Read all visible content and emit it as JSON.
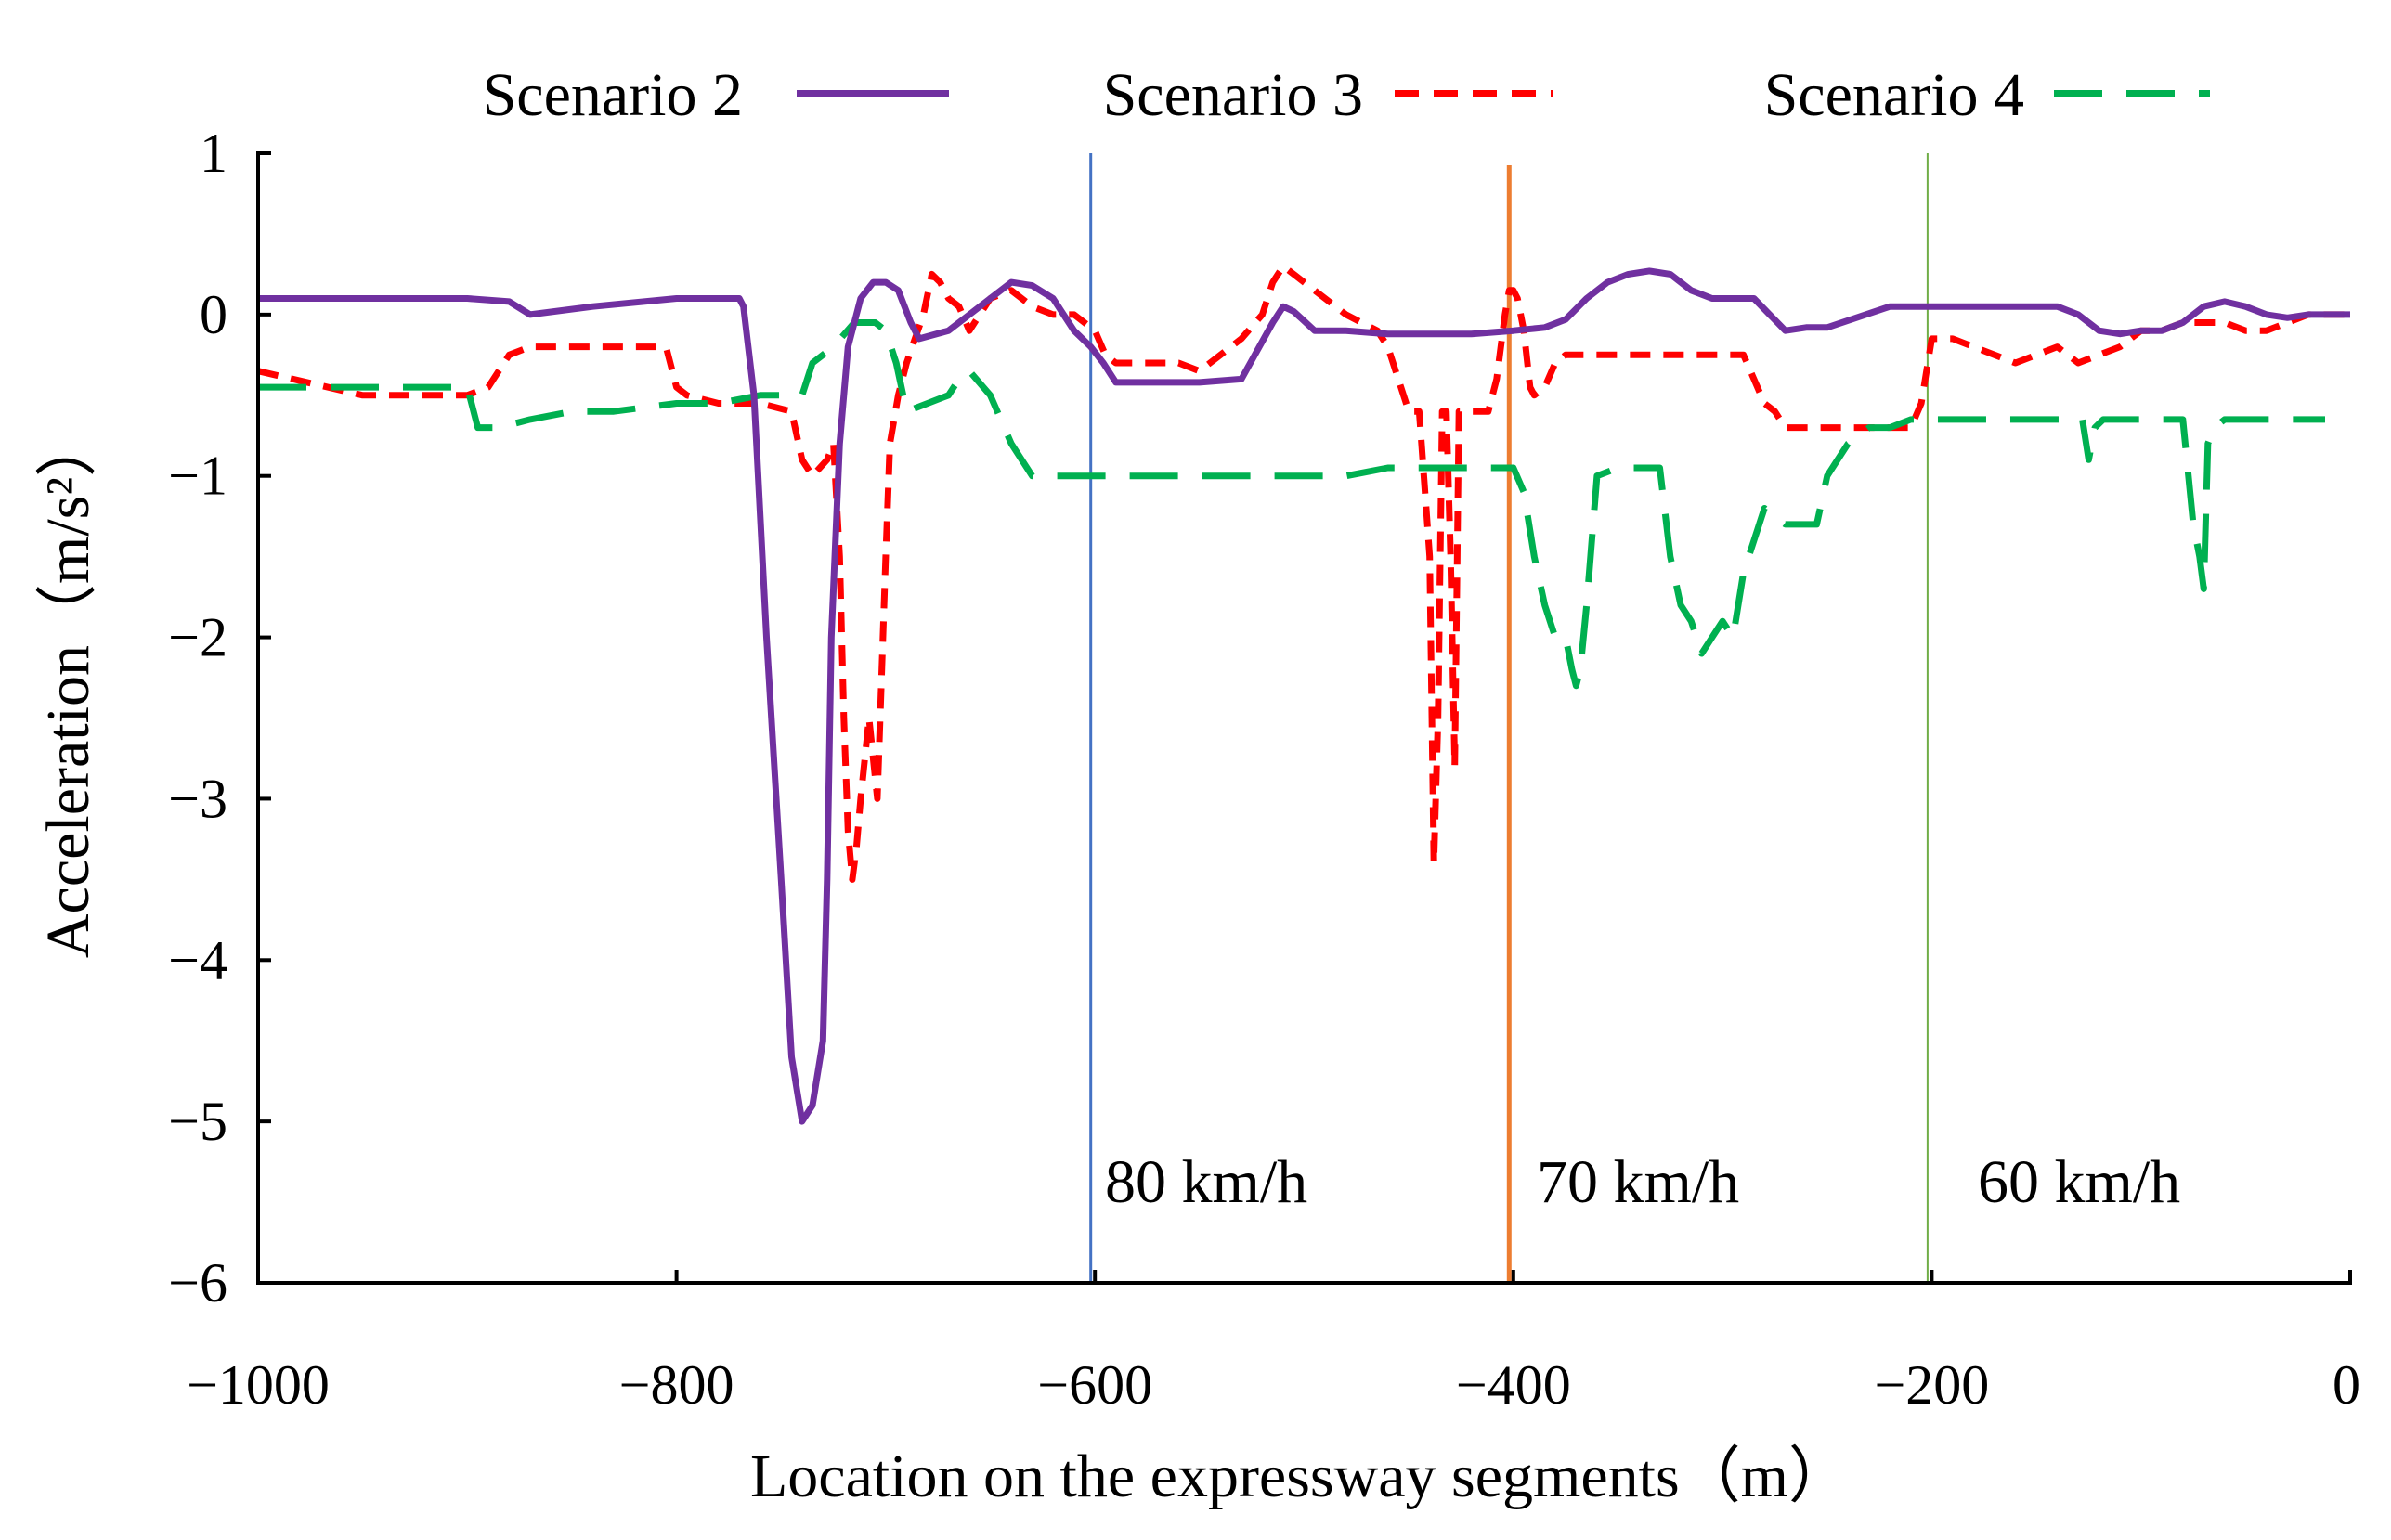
{
  "chart_data": {
    "type": "line",
    "title": "",
    "xlabel": "Location on the expressway segments（m）",
    "ylabel": "Acceleration（m/s²）",
    "xlim": [
      -1000,
      0
    ],
    "ylim": [
      -6,
      1
    ],
    "x_ticks": [
      -1000,
      -800,
      -600,
      -400,
      -200,
      0
    ],
    "x_tick_labels": [
      "−1000",
      "−800",
      "−600",
      "−400",
      "−200",
      "0"
    ],
    "y_ticks": [
      1,
      0,
      -1,
      -2,
      -3,
      -4,
      -5,
      -6
    ],
    "y_tick_labels": [
      "1",
      "0",
      "−1",
      "−2",
      "−3",
      "−4",
      "−5",
      "−6"
    ],
    "legend_position": "top",
    "series": [
      {
        "name": "Scenario 2",
        "color": "#7030A0",
        "dash": "solid",
        "x": [
          -1000,
          -900,
          -880,
          -870,
          -840,
          -800,
          -770,
          -768,
          -763,
          -757,
          -750,
          -745,
          -740,
          -735,
          -730,
          -728,
          -726,
          -722,
          -718,
          -712,
          -706,
          -700,
          -694,
          -688,
          -684,
          -670,
          -660,
          -650,
          -640,
          -630,
          -620,
          -610,
          -602,
          -596,
          -590,
          -575,
          -550,
          -530,
          -515,
          -510,
          -505,
          -495,
          -480,
          -460,
          -440,
          -420,
          -400,
          -385,
          -375,
          -365,
          -355,
          -345,
          -335,
          -325,
          -315,
          -305,
          -295,
          -285,
          -270,
          -260,
          -250,
          -220,
          -200,
          -180,
          -160,
          -140,
          -130,
          -120,
          -110,
          -100,
          -90,
          -80,
          -70,
          -60,
          -50,
          -40,
          -30,
          -20,
          -10,
          0
        ],
        "values": [
          0.1,
          0.1,
          0.08,
          0.0,
          0.05,
          0.1,
          0.1,
          0.05,
          -0.5,
          -2.0,
          -3.5,
          -4.6,
          -5.0,
          -4.9,
          -4.5,
          -3.5,
          -2.0,
          -0.8,
          -0.2,
          0.1,
          0.2,
          0.2,
          0.15,
          -0.05,
          -0.15,
          -0.1,
          0.0,
          0.1,
          0.2,
          0.18,
          0.1,
          -0.1,
          -0.2,
          -0.3,
          -0.42,
          -0.42,
          -0.42,
          -0.4,
          -0.05,
          0.05,
          0.02,
          -0.1,
          -0.1,
          -0.12,
          -0.12,
          -0.12,
          -0.1,
          -0.08,
          -0.03,
          0.1,
          0.2,
          0.25,
          0.27,
          0.25,
          0.15,
          0.1,
          0.1,
          0.1,
          -0.1,
          -0.08,
          -0.08,
          0.05,
          0.05,
          0.05,
          0.05,
          0.05,
          0.0,
          -0.1,
          -0.12,
          -0.1,
          -0.1,
          -0.05,
          0.05,
          0.08,
          0.05,
          0.0,
          -0.02,
          0.0,
          0.0,
          0.0
        ]
      },
      {
        "name": "Scenario 3",
        "color": "#FF0000",
        "dash": "dashed",
        "x": [
          -1000,
          -950,
          -900,
          -890,
          -880,
          -870,
          -860,
          -840,
          -820,
          -805,
          -800,
          -795,
          -780,
          -760,
          -745,
          -740,
          -735,
          -728,
          -725,
          -722,
          -720,
          -718,
          -716,
          -714,
          -712,
          -708,
          -704,
          -700,
          -698,
          -694,
          -690,
          -686,
          -682,
          -678,
          -674,
          -670,
          -665,
          -660,
          -650,
          -640,
          -630,
          -620,
          -610,
          -600,
          -595,
          -590,
          -580,
          -560,
          -550,
          -540,
          -530,
          -520,
          -515,
          -510,
          -500,
          -480,
          -465,
          -460,
          -455,
          -450,
          -445,
          -440,
          -438,
          -436,
          -434,
          -432,
          -430,
          -428,
          -426,
          -424,
          -420,
          -416,
          -412,
          -410,
          -408,
          -406,
          -404,
          -402,
          -400,
          -398,
          -395,
          -392,
          -390,
          -385,
          -380,
          -375,
          -370,
          -365,
          -355,
          -345,
          -330,
          -310,
          -290,
          -285,
          -280,
          -275,
          -270,
          -250,
          -230,
          -210,
          -205,
          -200,
          -190,
          -180,
          -170,
          -160,
          -150,
          -140,
          -130,
          -120,
          -110,
          -100,
          -90,
          -80,
          -70,
          -60,
          -50,
          -40,
          -30,
          -20,
          -10,
          0
        ],
        "values": [
          -0.35,
          -0.5,
          -0.5,
          -0.45,
          -0.25,
          -0.2,
          -0.2,
          -0.2,
          -0.2,
          -0.2,
          -0.45,
          -0.5,
          -0.55,
          -0.55,
          -0.6,
          -0.9,
          -1.0,
          -0.9,
          -0.8,
          -1.5,
          -2.5,
          -3.2,
          -3.5,
          -3.3,
          -3.0,
          -2.5,
          -3.0,
          -1.5,
          -0.8,
          -0.5,
          -0.3,
          -0.15,
          0.0,
          0.25,
          0.2,
          0.1,
          0.05,
          -0.1,
          0.1,
          0.15,
          0.05,
          0.0,
          0.0,
          -0.1,
          -0.25,
          -0.3,
          -0.3,
          -0.3,
          -0.35,
          -0.25,
          -0.15,
          0.0,
          0.2,
          0.3,
          0.2,
          0.0,
          -0.1,
          -0.2,
          -0.4,
          -0.6,
          -0.6,
          -1.5,
          -3.4,
          -2.5,
          -0.6,
          -0.6,
          -1.5,
          -2.8,
          -0.6,
          -0.6,
          -0.6,
          -0.6,
          -0.6,
          -0.5,
          -0.4,
          -0.2,
          0.0,
          0.15,
          0.15,
          0.1,
          -0.1,
          -0.45,
          -0.5,
          -0.45,
          -0.3,
          -0.25,
          -0.25,
          -0.25,
          -0.25,
          -0.25,
          -0.25,
          -0.25,
          -0.25,
          -0.4,
          -0.55,
          -0.6,
          -0.7,
          -0.7,
          -0.7,
          -0.7,
          -0.55,
          -0.15,
          -0.15,
          -0.2,
          -0.25,
          -0.3,
          -0.25,
          -0.2,
          -0.3,
          -0.25,
          -0.2,
          -0.1,
          -0.1,
          -0.05,
          -0.05,
          -0.05,
          -0.1,
          -0.1,
          -0.05,
          0.0,
          0.0,
          0.0
        ]
      },
      {
        "name": "Scenario 4",
        "color": "#00B050",
        "dash": "long-dashed",
        "x": [
          -1000,
          -900,
          -895,
          -885,
          -870,
          -850,
          -830,
          -800,
          -780,
          -760,
          -745,
          -740,
          -735,
          -725,
          -715,
          -710,
          -705,
          -700,
          -695,
          -690,
          -680,
          -670,
          -665,
          -660,
          -650,
          -640,
          -630,
          -600,
          -580,
          -550,
          -500,
          -480,
          -460,
          -440,
          -420,
          -400,
          -395,
          -390,
          -385,
          -380,
          -375,
          -372,
          -370,
          -368,
          -365,
          -360,
          -350,
          -340,
          -330,
          -325,
          -320,
          -315,
          -310,
          -305,
          -300,
          -295,
          -290,
          -285,
          -280,
          -270,
          -265,
          -260,
          -255,
          -250,
          -245,
          -240,
          -235,
          -230,
          -220,
          -210,
          -200,
          -180,
          -160,
          -140,
          -128,
          -125,
          -122,
          -118,
          -110,
          -100,
          -90,
          -80,
          -75,
          -72,
          -70,
          -68,
          -65,
          -60,
          -50,
          -40,
          -30,
          -20,
          -12
        ],
        "values": [
          -0.45,
          -0.45,
          -0.7,
          -0.7,
          -0.65,
          -0.6,
          -0.6,
          -0.55,
          -0.55,
          -0.5,
          -0.5,
          -0.5,
          -0.3,
          -0.2,
          -0.05,
          -0.05,
          -0.05,
          -0.1,
          -0.3,
          -0.6,
          -0.55,
          -0.5,
          -0.4,
          -0.35,
          -0.5,
          -0.8,
          -1.0,
          -1.0,
          -1.0,
          -1.0,
          -1.0,
          -1.0,
          -0.95,
          -0.95,
          -0.95,
          -0.95,
          -1.1,
          -1.5,
          -1.8,
          -2.0,
          -2.0,
          -2.2,
          -2.3,
          -2.2,
          -1.8,
          -1.0,
          -0.95,
          -0.95,
          -0.95,
          -1.5,
          -1.8,
          -1.9,
          -2.1,
          -2.0,
          -1.9,
          -2.0,
          -1.6,
          -1.4,
          -1.2,
          -1.3,
          -1.3,
          -1.3,
          -1.3,
          -1.0,
          -0.9,
          -0.8,
          -0.75,
          -0.7,
          -0.7,
          -0.65,
          -0.65,
          -0.65,
          -0.65,
          -0.65,
          -0.65,
          -0.9,
          -0.7,
          -0.65,
          -0.65,
          -0.65,
          -0.65,
          -0.65,
          -1.3,
          -1.5,
          -1.7,
          -0.8,
          -0.7,
          -0.65,
          -0.65,
          -0.65,
          -0.65,
          -0.65,
          -0.65
        ]
      }
    ],
    "reference_lines": [
      {
        "x": -602,
        "color": "#4472C4",
        "label": "80 km/h"
      },
      {
        "x": -402,
        "color": "#ED7D31",
        "label": "70 km/h"
      },
      {
        "x": -202,
        "color": "#70AD47",
        "label": "60 km/h"
      }
    ]
  }
}
